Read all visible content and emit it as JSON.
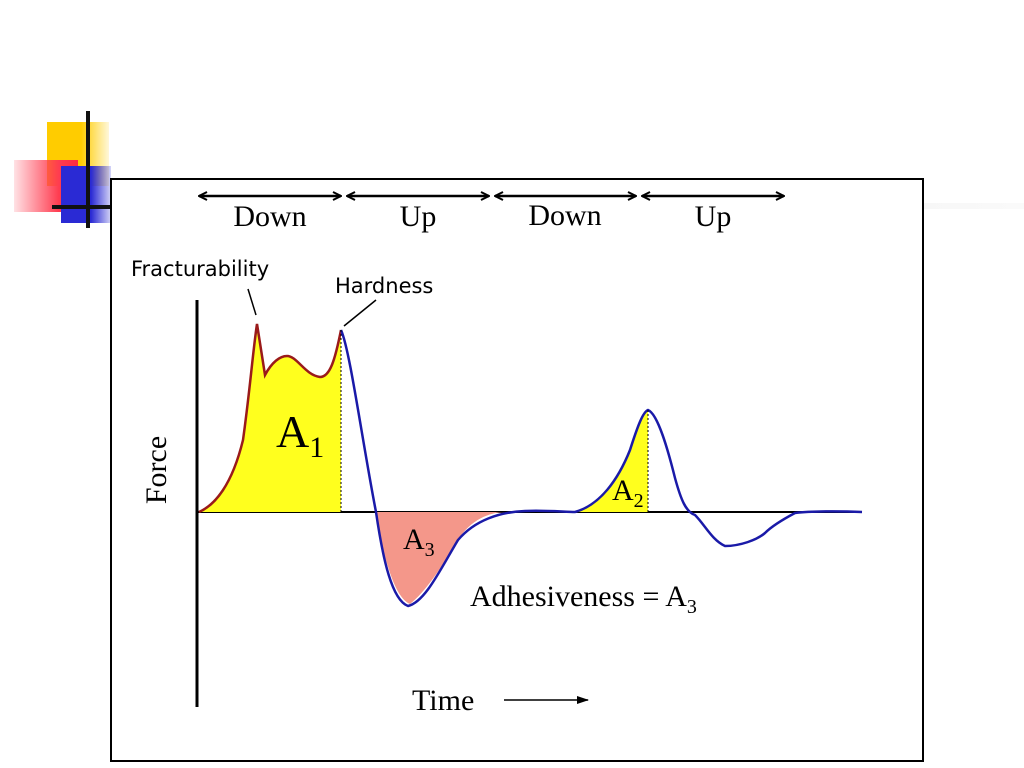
{
  "phases": [
    "Down",
    "Up",
    "Down",
    "Up"
  ],
  "annotations": {
    "fracturability": "Fracturability",
    "hardness": "Hardness"
  },
  "areas": {
    "a1_main": "A",
    "a1_sub": "1",
    "a2_main": "A",
    "a2_sub": "2",
    "a3_main": "A",
    "a3_sub": "3"
  },
  "adhesiveness": {
    "prefix": "Adhesiveness = A",
    "sub": "3"
  },
  "axes": {
    "y_label": "Force",
    "x_label": "Time"
  },
  "colors": {
    "compression_fill": "#ffff1e",
    "adhesion_fill": "#f4978a",
    "first_curve": "#9a1a1a",
    "second_curve": "#1a1aa8",
    "frame": "#000000"
  }
}
